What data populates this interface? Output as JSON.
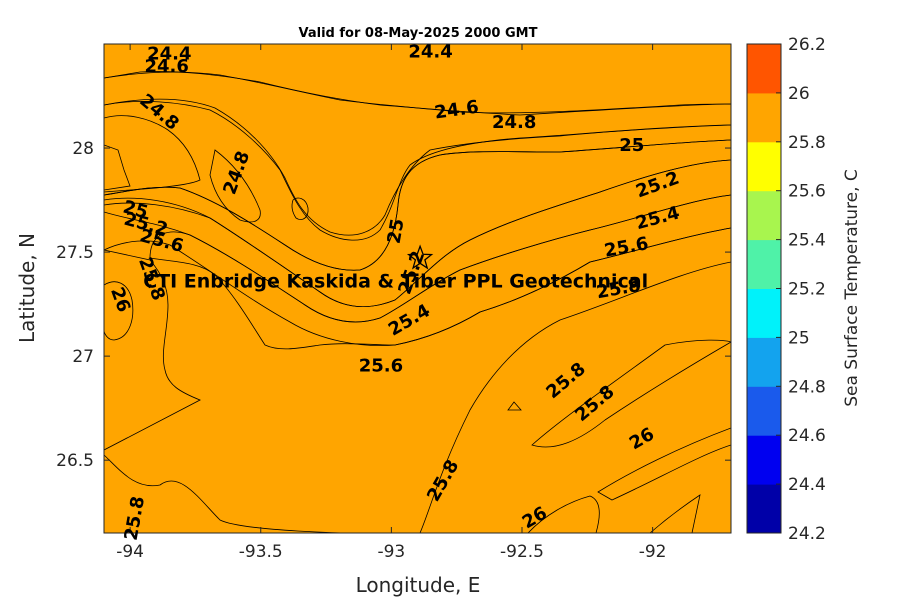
{
  "chart_data": {
    "type": "contour",
    "title": "Valid for 08-May-2025 2000 GMT",
    "xlabel": "Longitude, E",
    "ylabel": "Latitude, N",
    "xlim": [
      -94.1,
      -91.7
    ],
    "ylim": [
      26.15,
      28.5
    ],
    "x_ticks": [
      "-94",
      "-93.5",
      "-93",
      "-92.5",
      "-92"
    ],
    "y_ticks": [
      "26.5",
      "27",
      "27.5",
      "28"
    ],
    "colorbar": {
      "label": "Sea Surface Temperature, C",
      "ticks": [
        "24.2",
        "24.4",
        "24.6",
        "24.8",
        "25",
        "25.2",
        "25.4",
        "25.6",
        "25.8",
        "26",
        "26.2"
      ],
      "levels": [
        {
          "from": 24.2,
          "to": 24.4,
          "color": "#0000A8"
        },
        {
          "from": 24.4,
          "to": 24.6,
          "color": "#0000F0"
        },
        {
          "from": 24.6,
          "to": 24.8,
          "color": "#1A5AEC"
        },
        {
          "from": 24.8,
          "to": 25.0,
          "color": "#13A3EE"
        },
        {
          "from": 25.0,
          "to": 25.2,
          "color": "#00F2FA"
        },
        {
          "from": 25.2,
          "to": 25.4,
          "color": "#4FF2A8"
        },
        {
          "from": 25.4,
          "to": 25.6,
          "color": "#A8F54E"
        },
        {
          "from": 25.6,
          "to": 25.8,
          "color": "#FFFF00"
        },
        {
          "from": 25.8,
          "to": 26.0,
          "color": "#FFA500"
        },
        {
          "from": 26.0,
          "to": 26.2,
          "color": "#FF5500"
        }
      ]
    },
    "contour_labels": [
      {
        "text": "24.4",
        "lon": -93.85,
        "lat": 28.45
      },
      {
        "text": "24.6",
        "lon": -93.86,
        "lat": 28.39
      },
      {
        "text": "24.4",
        "lon": -92.85,
        "lat": 28.46
      },
      {
        "text": "24.8",
        "lon": -93.89,
        "lat": 28.17
      },
      {
        "text": "24.6",
        "lon": -92.75,
        "lat": 28.18
      },
      {
        "text": "24.8",
        "lon": -92.53,
        "lat": 28.12
      },
      {
        "text": "24.8",
        "lon": -93.59,
        "lat": 27.88
      },
      {
        "text": "25",
        "lon": -92.08,
        "lat": 28.01
      },
      {
        "text": "25.2",
        "lon": -91.98,
        "lat": 27.82
      },
      {
        "text": "25.4",
        "lon": -91.98,
        "lat": 27.66
      },
      {
        "text": "25.6",
        "lon": -92.1,
        "lat": 27.52
      },
      {
        "text": "25.8",
        "lon": -92.13,
        "lat": 27.32
      },
      {
        "text": "25",
        "lon": -93.98,
        "lat": 27.7
      },
      {
        "text": "25.2",
        "lon": -93.94,
        "lat": 27.63
      },
      {
        "text": "25.6",
        "lon": -93.88,
        "lat": 27.55
      },
      {
        "text": "25.8",
        "lon": -93.92,
        "lat": 27.37
      },
      {
        "text": "26",
        "lon": -94.04,
        "lat": 27.27
      },
      {
        "text": "25",
        "lon": -92.98,
        "lat": 27.6
      },
      {
        "text": "25.2",
        "lon": -92.92,
        "lat": 27.4
      },
      {
        "text": "25.4",
        "lon": -92.93,
        "lat": 27.17
      },
      {
        "text": "25.6",
        "lon": -93.04,
        "lat": 26.95
      },
      {
        "text": "25.8",
        "lon": -92.33,
        "lat": 26.88
      },
      {
        "text": "25.8",
        "lon": -92.22,
        "lat": 26.77
      },
      {
        "text": "25.8",
        "lon": -92.8,
        "lat": 26.4
      },
      {
        "text": "25.8",
        "lon": -93.98,
        "lat": 26.22
      },
      {
        "text": "26",
        "lon": -92.04,
        "lat": 26.6
      },
      {
        "text": "26",
        "lon": -92.45,
        "lat": 26.22
      }
    ],
    "annotation": {
      "text": "CTI Enbridge  Kaskida & Tiber PPL Geotechnical",
      "lon": -93.95,
      "lat": 27.33,
      "marker": "star",
      "marker_lon": -92.89,
      "marker_lat": 27.47
    }
  }
}
